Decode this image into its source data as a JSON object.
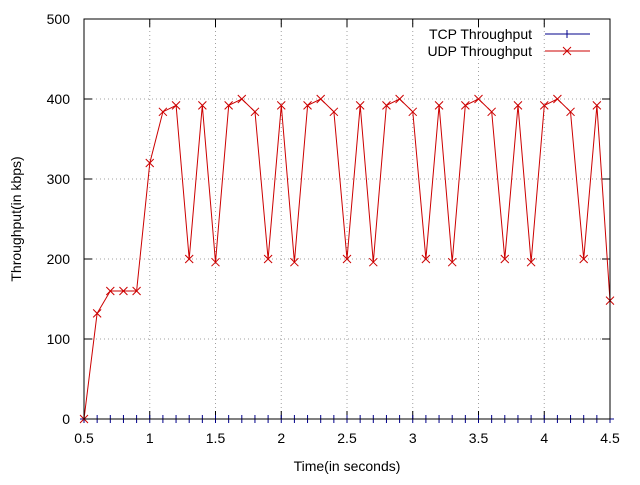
{
  "chart_data": {
    "type": "line",
    "title": "",
    "xlabel": "Time(in seconds)",
    "ylabel": "Throughput(in kbps)",
    "xlim": [
      0.5,
      4.5
    ],
    "ylim": [
      0,
      500
    ],
    "x_ticks": [
      0.5,
      1,
      1.5,
      2,
      2.5,
      3,
      3.5,
      4,
      4.5
    ],
    "x_tick_labels": [
      "0.5",
      "1",
      "1.5",
      "2",
      "2.5",
      "3",
      "3.5",
      "4",
      "4.5"
    ],
    "y_ticks": [
      0,
      100,
      200,
      300,
      400,
      500
    ],
    "y_tick_labels": [
      "0",
      "100",
      "200",
      "300",
      "400",
      "500"
    ],
    "grid": true,
    "legend_position": "top-right",
    "x": [
      0.5,
      0.6,
      0.7,
      0.8,
      0.9,
      1.0,
      1.1,
      1.2,
      1.3,
      1.4,
      1.5,
      1.6,
      1.7,
      1.8,
      1.9,
      2.0,
      2.1,
      2.2,
      2.3,
      2.4,
      2.5,
      2.6,
      2.7,
      2.8,
      2.9,
      3.0,
      3.1,
      3.2,
      3.3,
      3.4,
      3.5,
      3.6,
      3.7,
      3.8,
      3.9,
      4.0,
      4.1,
      4.2,
      4.3,
      4.4,
      4.5
    ],
    "series": [
      {
        "name": "TCP Throughput",
        "color": "#00008b",
        "marker": "plus",
        "values": [
          0,
          0,
          0,
          0,
          0,
          0,
          0,
          0,
          0,
          0,
          0,
          0,
          0,
          0,
          0,
          0,
          0,
          0,
          0,
          0,
          0,
          0,
          0,
          0,
          0,
          0,
          0,
          0,
          0,
          0,
          0,
          0,
          0,
          0,
          0,
          0,
          0,
          0,
          0,
          0,
          0
        ]
      },
      {
        "name": "UDP Throughput",
        "color": "#cc0000",
        "marker": "cross",
        "values": [
          0,
          132,
          160,
          160,
          160,
          320,
          384,
          392,
          200,
          392,
          196,
          392,
          400,
          384,
          200,
          392,
          196,
          392,
          400,
          384,
          200,
          392,
          196,
          392,
          400,
          384,
          200,
          392,
          196,
          392,
          400,
          384,
          200,
          392,
          196,
          392,
          400,
          384,
          200,
          392,
          148
        ]
      }
    ]
  }
}
